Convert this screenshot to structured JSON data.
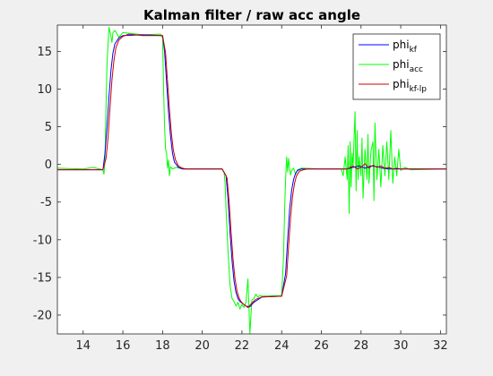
{
  "chart_data": {
    "type": "line",
    "title": "Kalman filter / raw acc angle",
    "xlabel": "",
    "ylabel": "",
    "xlim": [
      12.7,
      32.3
    ],
    "ylim": [
      -22.5,
      18.5
    ],
    "xticks": [
      14,
      16,
      18,
      20,
      22,
      24,
      26,
      28,
      30,
      32
    ],
    "yticks": [
      15,
      10,
      5,
      0,
      -5,
      -10,
      -15,
      -20
    ],
    "grid": false,
    "legend_placement": "top-right",
    "series": [
      {
        "key": "kf",
        "name": "phi",
        "name_sub": "kf",
        "color": "#0000ff",
        "x": [
          12.7,
          15.0,
          15.1,
          15.2,
          15.3,
          15.4,
          15.5,
          15.6,
          15.8,
          16.0,
          17.0,
          18.0,
          18.1,
          18.2,
          18.3,
          18.4,
          18.5,
          18.6,
          18.8,
          19.0,
          21.0,
          21.2,
          21.3,
          21.4,
          21.5,
          21.6,
          21.7,
          21.8,
          21.9,
          22.0,
          22.2,
          22.4,
          22.6,
          23.0,
          24.0,
          24.2,
          24.3,
          24.4,
          24.5,
          24.6,
          24.7,
          24.8,
          25.0,
          25.2,
          25.5,
          26.0,
          27.0,
          27.3,
          27.6,
          27.9,
          28.2,
          28.5,
          28.8,
          29.1,
          29.4,
          29.7,
          30.0,
          32.3
        ],
        "y": [
          -0.7,
          -0.7,
          1.5,
          5.0,
          9.0,
          12.5,
          14.8,
          16.0,
          16.8,
          17.1,
          17.2,
          17.1,
          15.0,
          11.0,
          7.0,
          3.8,
          1.5,
          0.3,
          -0.4,
          -0.6,
          -0.6,
          -1.5,
          -4.5,
          -9.0,
          -12.8,
          -15.5,
          -17.0,
          -17.8,
          -18.2,
          -18.4,
          -18.8,
          -18.9,
          -18.3,
          -17.6,
          -17.5,
          -14.5,
          -10.0,
          -6.0,
          -3.5,
          -2.0,
          -1.2,
          -0.8,
          -0.6,
          -0.6,
          -0.6,
          -0.6,
          -0.6,
          -0.6,
          -0.4,
          -0.2,
          -0.5,
          -0.2,
          -0.3,
          -0.5,
          -0.6,
          -0.6,
          -0.6,
          -0.6
        ]
      },
      {
        "key": "acc",
        "name": "phi",
        "name_sub": "acc",
        "color": "#00ff00",
        "x": [
          12.7,
          14.0,
          14.5,
          15.0,
          15.05,
          15.1,
          15.15,
          15.2,
          15.3,
          15.4,
          15.45,
          15.5,
          15.6,
          15.8,
          16.0,
          17.0,
          17.9,
          18.0,
          18.05,
          18.1,
          18.15,
          18.2,
          18.25,
          18.3,
          18.35,
          18.4,
          18.5,
          18.7,
          19.0,
          21.0,
          21.1,
          21.15,
          21.2,
          21.3,
          21.4,
          21.5,
          21.6,
          21.7,
          21.8,
          21.9,
          22.0,
          22.1,
          22.2,
          22.3,
          22.4,
          22.5,
          22.6,
          22.7,
          22.8,
          22.9,
          23.0,
          24.0,
          24.1,
          24.15,
          24.2,
          24.25,
          24.3,
          24.35,
          24.4,
          24.45,
          24.5,
          24.6,
          24.7,
          24.8,
          25.0,
          26.0,
          27.0,
          27.1,
          27.2,
          27.3,
          27.35,
          27.4,
          27.45,
          27.5,
          27.55,
          27.6,
          27.7,
          27.75,
          27.8,
          27.85,
          27.9,
          28.0,
          28.05,
          28.1,
          28.2,
          28.3,
          28.35,
          28.4,
          28.5,
          28.6,
          28.65,
          28.7,
          28.8,
          28.9,
          29.0,
          29.1,
          29.2,
          29.3,
          29.4,
          29.5,
          29.6,
          29.7,
          29.8,
          29.9,
          30.0,
          30.2,
          30.5,
          32.3
        ],
        "y": [
          -0.5,
          -0.6,
          -0.4,
          -0.7,
          -1.3,
          0.5,
          8.0,
          13.5,
          18.2,
          17.0,
          16.2,
          17.5,
          17.8,
          16.9,
          17.5,
          17.2,
          17.3,
          16.8,
          10.0,
          5.0,
          2.0,
          1.5,
          -0.5,
          0.6,
          -1.5,
          -0.3,
          -0.6,
          -0.4,
          -0.6,
          -0.6,
          -1.0,
          -2.5,
          -6.0,
          -11.5,
          -16.0,
          -17.8,
          -18.2,
          -18.8,
          -18.3,
          -19.2,
          -18.6,
          -19.0,
          -18.3,
          -15.2,
          -22.5,
          -18.0,
          -17.8,
          -17.2,
          -17.6,
          -17.4,
          -17.5,
          -17.4,
          -12.0,
          -6.0,
          -2.0,
          1.0,
          -1.0,
          0.8,
          -0.5,
          -1.4,
          -0.8,
          -0.5,
          -1.3,
          -0.7,
          -0.5,
          -0.6,
          -0.6,
          -1.5,
          1.0,
          -2.0,
          2.5,
          -6.5,
          3.0,
          -3.0,
          1.5,
          -0.3,
          7.0,
          -3.5,
          4.5,
          -2.0,
          1.0,
          -1.5,
          3.5,
          -4.5,
          2.0,
          -2.0,
          4.0,
          -2.5,
          1.8,
          3.0,
          -4.8,
          5.5,
          -2.0,
          2.0,
          -3.0,
          2.5,
          -1.5,
          3.0,
          -2.0,
          4.5,
          -2.5,
          1.0,
          -1.5,
          2.0,
          -0.8,
          -0.4,
          -0.7,
          -0.6
        ]
      },
      {
        "key": "kflp",
        "name": "phi",
        "name_sub": "kf-lp",
        "color": "#cc0000",
        "x": [
          12.7,
          15.0,
          15.15,
          15.25,
          15.35,
          15.45,
          15.55,
          15.65,
          15.8,
          16.0,
          16.3,
          17.0,
          18.0,
          18.15,
          18.25,
          18.35,
          18.45,
          18.55,
          18.65,
          18.8,
          19.0,
          19.2,
          21.0,
          21.25,
          21.35,
          21.45,
          21.55,
          21.65,
          21.75,
          21.85,
          21.95,
          22.1,
          22.3,
          22.5,
          22.7,
          23.0,
          24.0,
          24.25,
          24.35,
          24.45,
          24.55,
          24.65,
          24.75,
          24.9,
          25.1,
          25.3,
          26.0,
          27.0,
          27.3,
          27.6,
          27.8,
          28.0,
          28.2,
          28.4,
          28.6,
          28.8,
          29.0,
          29.2,
          29.4,
          29.6,
          29.8,
          30.0,
          32.3
        ],
        "y": [
          -0.7,
          -0.7,
          0.8,
          3.5,
          7.5,
          11.2,
          13.8,
          15.5,
          16.5,
          17.0,
          17.3,
          17.1,
          17.1,
          14.8,
          11.0,
          7.2,
          4.0,
          1.8,
          0.6,
          -0.2,
          -0.5,
          -0.6,
          -0.6,
          -1.8,
          -4.8,
          -9.0,
          -12.6,
          -15.2,
          -16.8,
          -17.7,
          -18.2,
          -18.6,
          -19.0,
          -18.4,
          -17.9,
          -17.6,
          -17.5,
          -14.8,
          -10.8,
          -7.0,
          -4.2,
          -2.5,
          -1.5,
          -0.9,
          -0.7,
          -0.6,
          -0.6,
          -0.6,
          -0.6,
          -0.2,
          -0.6,
          -0.4,
          0.1,
          -0.5,
          -0.1,
          -0.4,
          -0.2,
          -0.5,
          -0.4,
          -0.6,
          -0.5,
          -0.6,
          -0.6
        ]
      }
    ]
  }
}
